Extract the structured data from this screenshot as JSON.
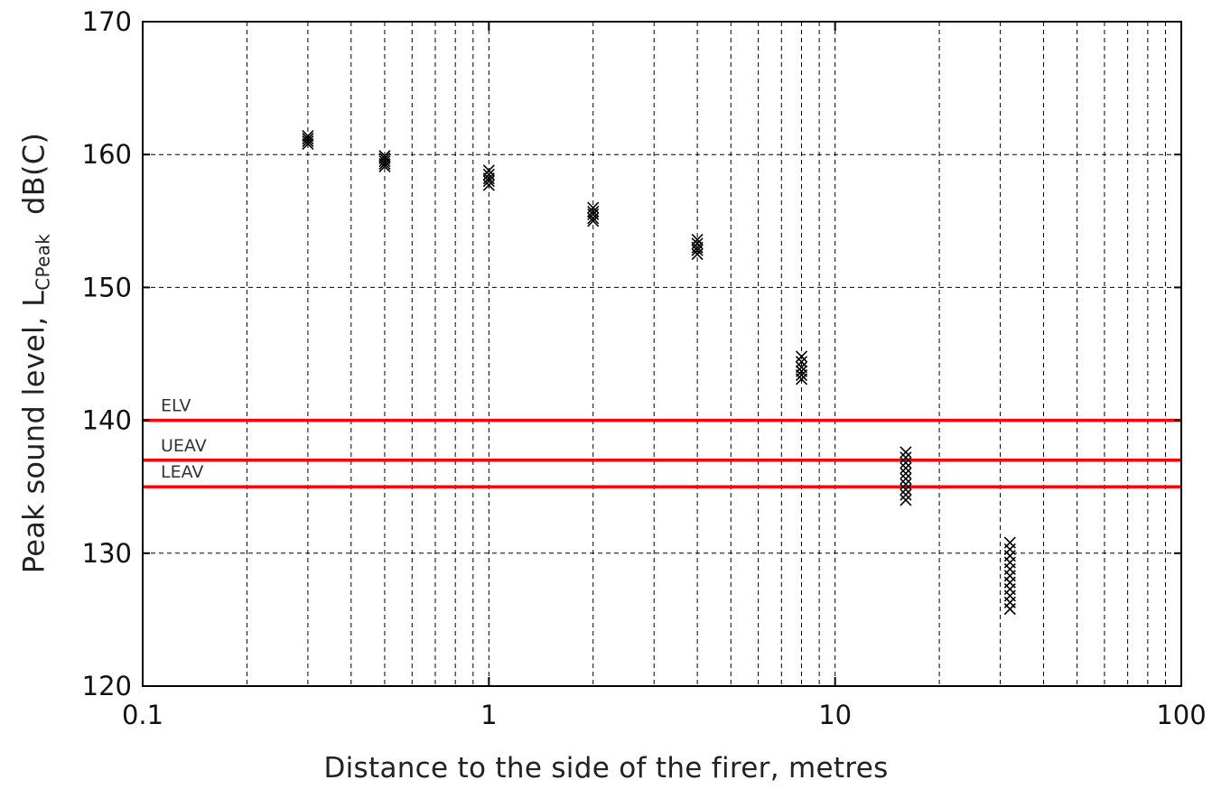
{
  "chart_data": {
    "type": "scatter",
    "title": "",
    "xlabel": "Distance to the side of the firer, metres",
    "ylabel": {
      "main": "Peak sound level, L",
      "subscript": "CPeak",
      "unit": "dB(C)"
    },
    "x_scale": "log",
    "xlim": [
      0.1,
      100
    ],
    "ylim": [
      120,
      170
    ],
    "x_ticks": [
      0.1,
      1,
      10,
      100
    ],
    "x_tick_labels": [
      "0.1",
      "1",
      "10",
      "100"
    ],
    "y_ticks": [
      120,
      130,
      140,
      150,
      160,
      170
    ],
    "y_tick_labels": [
      "120",
      "130",
      "140",
      "150",
      "160",
      "170"
    ],
    "grid": true,
    "marker": "x",
    "marker_color": "#000000",
    "reference_line_color": "#ff0000",
    "reference_lines": [
      {
        "label": "ELV",
        "y": 140
      },
      {
        "label": "UEAV",
        "y": 137
      },
      {
        "label": "LEAV",
        "y": 135
      }
    ],
    "points": [
      {
        "x": 0.3,
        "y": 161.4
      },
      {
        "x": 0.3,
        "y": 161.2
      },
      {
        "x": 0.3,
        "y": 161.0
      },
      {
        "x": 0.3,
        "y": 160.8
      },
      {
        "x": 0.5,
        "y": 159.9
      },
      {
        "x": 0.5,
        "y": 159.7
      },
      {
        "x": 0.5,
        "y": 159.5
      },
      {
        "x": 0.5,
        "y": 159.3
      },
      {
        "x": 0.5,
        "y": 159.1
      },
      {
        "x": 1,
        "y": 158.8
      },
      {
        "x": 1,
        "y": 158.5
      },
      {
        "x": 1,
        "y": 158.2
      },
      {
        "x": 1,
        "y": 158.0
      },
      {
        "x": 1,
        "y": 157.7
      },
      {
        "x": 2,
        "y": 156.0
      },
      {
        "x": 2,
        "y": 155.7
      },
      {
        "x": 2,
        "y": 155.5
      },
      {
        "x": 2,
        "y": 155.2
      },
      {
        "x": 2,
        "y": 155.0
      },
      {
        "x": 4,
        "y": 153.6
      },
      {
        "x": 4,
        "y": 153.3
      },
      {
        "x": 4,
        "y": 153.0
      },
      {
        "x": 4,
        "y": 152.8
      },
      {
        "x": 4,
        "y": 152.5
      },
      {
        "x": 8,
        "y": 144.8
      },
      {
        "x": 8,
        "y": 144.4
      },
      {
        "x": 8,
        "y": 144.0
      },
      {
        "x": 8,
        "y": 143.7
      },
      {
        "x": 8,
        "y": 143.4
      },
      {
        "x": 8,
        "y": 143.1
      },
      {
        "x": 16,
        "y": 137.6
      },
      {
        "x": 16,
        "y": 137.2
      },
      {
        "x": 16,
        "y": 136.8
      },
      {
        "x": 16,
        "y": 136.4
      },
      {
        "x": 16,
        "y": 136.0
      },
      {
        "x": 16,
        "y": 135.6
      },
      {
        "x": 16,
        "y": 135.2
      },
      {
        "x": 16,
        "y": 134.8
      },
      {
        "x": 16,
        "y": 134.4
      },
      {
        "x": 16,
        "y": 134.0
      },
      {
        "x": 32,
        "y": 130.8
      },
      {
        "x": 32,
        "y": 130.3
      },
      {
        "x": 32,
        "y": 129.8
      },
      {
        "x": 32,
        "y": 129.3
      },
      {
        "x": 32,
        "y": 128.8
      },
      {
        "x": 32,
        "y": 128.3
      },
      {
        "x": 32,
        "y": 127.8
      },
      {
        "x": 32,
        "y": 127.3
      },
      {
        "x": 32,
        "y": 126.8
      },
      {
        "x": 32,
        "y": 126.3
      },
      {
        "x": 32,
        "y": 125.8
      }
    ]
  }
}
